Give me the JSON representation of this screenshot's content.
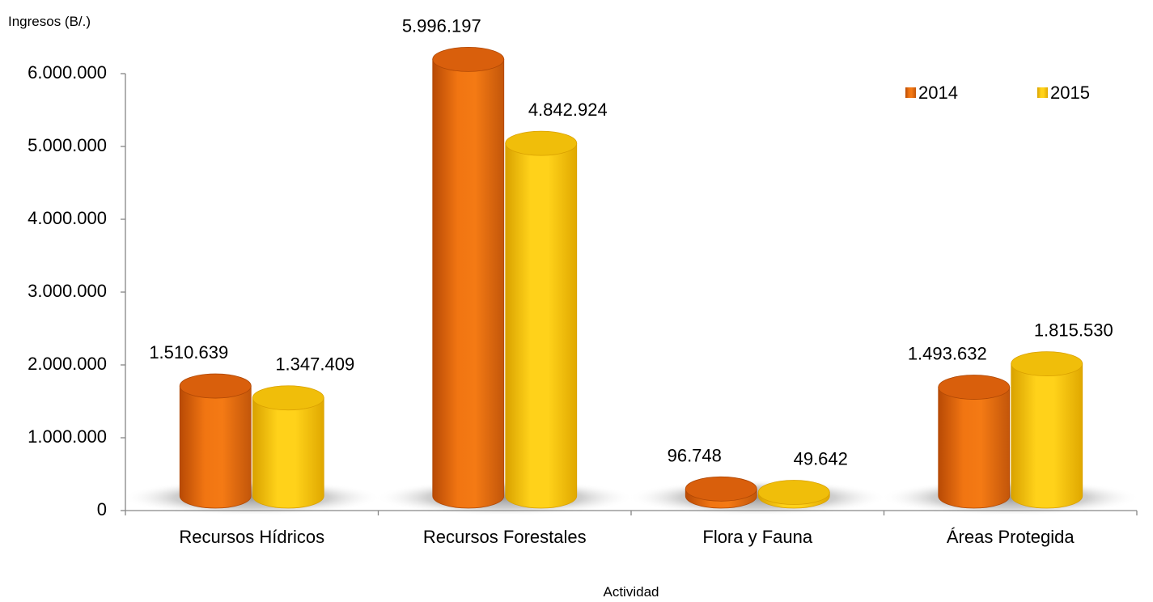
{
  "chart_data": {
    "type": "bar",
    "title": "",
    "ylabel": "Ingresos (B/.)",
    "xlabel": "Actividad",
    "categories": [
      "Recursos Hídricos",
      "Recursos Forestales",
      "Flora y Fauna",
      "Áreas Protegida"
    ],
    "series": [
      {
        "name": "2014",
        "values": [
          1510639,
          5996197,
          96748,
          1493632
        ],
        "labels": [
          "1.510.639",
          "5.996.197",
          "96.748",
          "1.493.632"
        ],
        "color": "#E8630A"
      },
      {
        "name": "2015",
        "values": [
          1347409,
          4842924,
          49642,
          1815530
        ],
        "labels": [
          "1.347.409",
          "4.842.924",
          "49.642",
          "1.815.530"
        ],
        "color": "#F5C400"
      }
    ],
    "ylim": [
      0,
      6000000
    ],
    "yticks": [
      0,
      1000000,
      2000000,
      3000000,
      4000000,
      5000000,
      6000000
    ],
    "ytick_labels": [
      "0",
      "1.000.000",
      "2.000.000",
      "3.000.000",
      "4.000.000",
      "5.000.000",
      "6.000.000"
    ],
    "grid": false,
    "legend_position": "top-right",
    "style": "3d-cylinder"
  }
}
